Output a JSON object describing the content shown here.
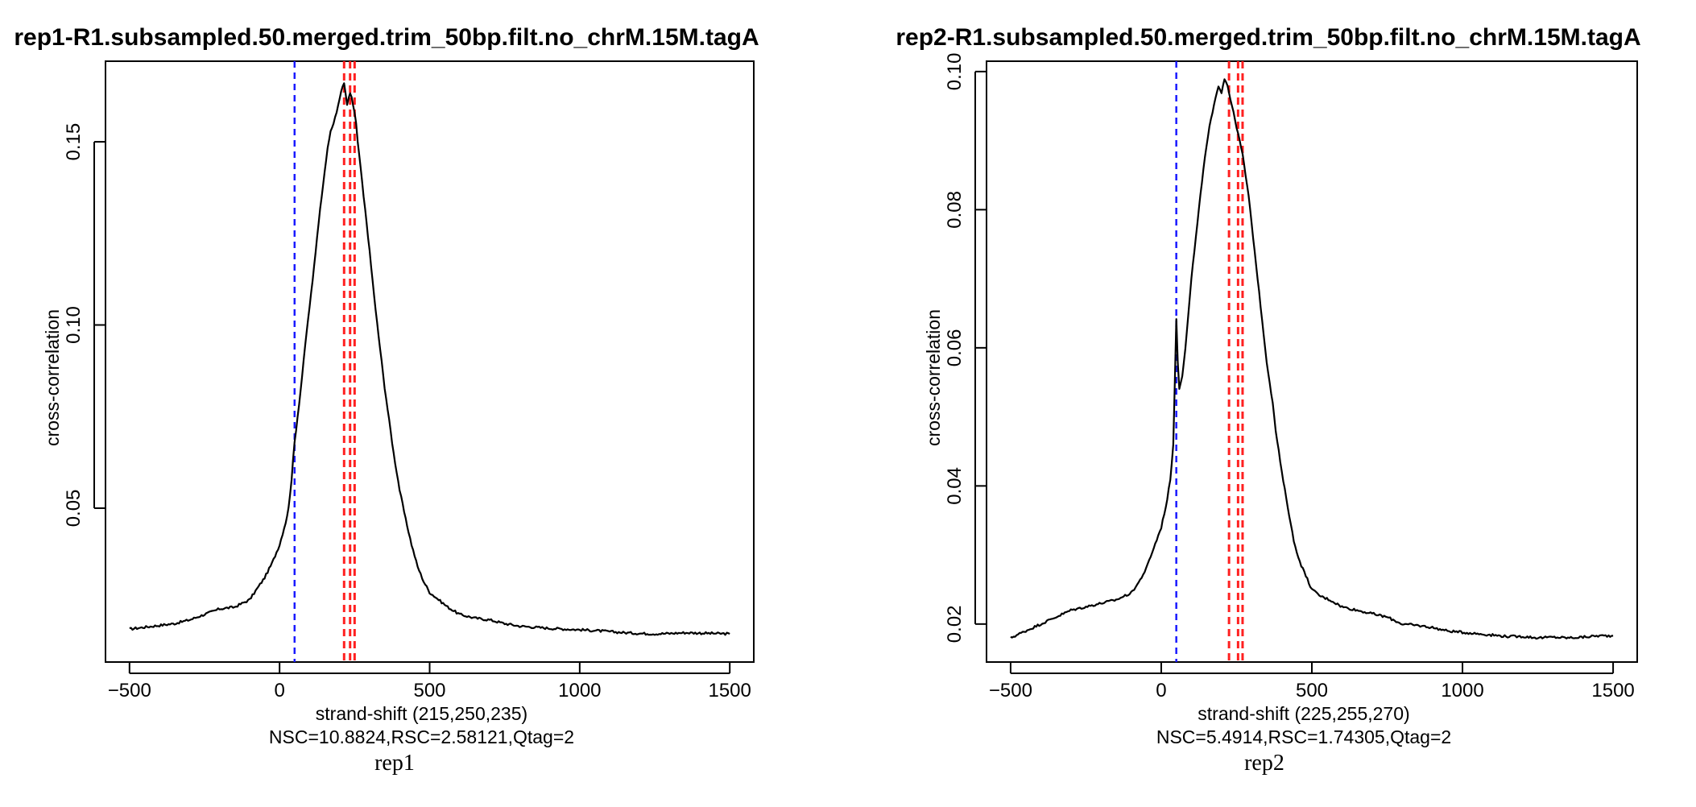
{
  "chart_data": [
    {
      "type": "line",
      "id": "rep1",
      "title": "rep1-R1.subsampled.50.merged.trim_50bp.filt.no_chrM.15M.tagA",
      "xlabel": "strand-shift (215,250,235)",
      "sublabel": "NSC=10.8824,RSC=2.58121,Qtag=2",
      "ylabel": "cross-correlation",
      "xlim": [
        -580,
        1580
      ],
      "ylim": [
        0.008,
        0.172
      ],
      "xticks": [
        -500,
        0,
        500,
        1000,
        1500
      ],
      "yticks": [
        0.05,
        0.1,
        0.15
      ],
      "ytick_labels": [
        "0.05",
        "0.10",
        "0.15"
      ],
      "vlines_blue": [
        50
      ],
      "vlines_red": [
        215,
        235,
        250
      ],
      "series": [
        {
          "name": "cross-correlation",
          "x": [
            -500,
            -450,
            -400,
            -350,
            -300,
            -250,
            -200,
            -150,
            -100,
            -75,
            -50,
            -25,
            0,
            10,
            20,
            30,
            40,
            50,
            60,
            70,
            80,
            90,
            100,
            110,
            120,
            130,
            140,
            150,
            160,
            170,
            180,
            190,
            200,
            210,
            215,
            220,
            225,
            230,
            235,
            240,
            245,
            250,
            255,
            260,
            270,
            280,
            290,
            300,
            310,
            320,
            330,
            340,
            350,
            360,
            370,
            380,
            390,
            400,
            420,
            440,
            460,
            480,
            500,
            530,
            560,
            600,
            650,
            700,
            750,
            800,
            850,
            900,
            950,
            1000,
            1050,
            1100,
            1150,
            1200,
            1250,
            1300,
            1350,
            1400,
            1450,
            1500
          ],
          "y": [
            0.017,
            0.0175,
            0.018,
            0.0185,
            0.0195,
            0.021,
            0.0225,
            0.023,
            0.025,
            0.028,
            0.031,
            0.035,
            0.04,
            0.043,
            0.046,
            0.05,
            0.058,
            0.068,
            0.075,
            0.082,
            0.09,
            0.098,
            0.105,
            0.112,
            0.12,
            0.128,
            0.135,
            0.142,
            0.148,
            0.153,
            0.155,
            0.158,
            0.162,
            0.165,
            0.166,
            0.163,
            0.16,
            0.162,
            0.163,
            0.162,
            0.16,
            0.158,
            0.155,
            0.15,
            0.143,
            0.135,
            0.128,
            0.12,
            0.112,
            0.104,
            0.097,
            0.09,
            0.083,
            0.077,
            0.071,
            0.065,
            0.06,
            0.055,
            0.047,
            0.04,
            0.034,
            0.03,
            0.027,
            0.025,
            0.023,
            0.021,
            0.02,
            0.0195,
            0.0185,
            0.0178,
            0.0175,
            0.0172,
            0.017,
            0.0168,
            0.0166,
            0.0163,
            0.016,
            0.0158,
            0.0157,
            0.0158,
            0.016,
            0.0159,
            0.0158,
            0.0157
          ]
        }
      ]
    },
    {
      "type": "line",
      "id": "rep2",
      "title": "rep2-R1.subsampled.50.merged.trim_50bp.filt.no_chrM.15M.tagA",
      "xlabel": "strand-shift (225,255,270)",
      "sublabel": "NSC=5.4914,RSC=1.74305,Qtag=2",
      "ylabel": "cross-correlation",
      "xlim": [
        -580,
        1580
      ],
      "ylim": [
        0.0145,
        0.1015
      ],
      "xticks": [
        -500,
        0,
        500,
        1000,
        1500
      ],
      "yticks": [
        0.02,
        0.04,
        0.06,
        0.08,
        0.1
      ],
      "ytick_labels": [
        "0.02",
        "0.04",
        "0.06",
        "0.08",
        "0.10"
      ],
      "vlines_blue": [
        50
      ],
      "vlines_red": [
        225,
        255,
        270
      ],
      "series": [
        {
          "name": "cross-correlation",
          "x": [
            -500,
            -450,
            -400,
            -350,
            -300,
            -250,
            -200,
            -150,
            -100,
            -75,
            -50,
            -25,
            0,
            10,
            20,
            30,
            40,
            45,
            50,
            55,
            60,
            70,
            80,
            90,
            100,
            110,
            120,
            130,
            140,
            150,
            160,
            170,
            180,
            190,
            200,
            210,
            220,
            230,
            240,
            250,
            260,
            270,
            280,
            290,
            300,
            310,
            320,
            330,
            340,
            350,
            360,
            370,
            380,
            390,
            400,
            420,
            440,
            460,
            480,
            500,
            530,
            560,
            600,
            650,
            700,
            750,
            800,
            850,
            900,
            950,
            1000,
            1050,
            1100,
            1150,
            1200,
            1250,
            1300,
            1350,
            1400,
            1450,
            1500
          ],
          "y": [
            0.018,
            0.019,
            0.02,
            0.021,
            0.022,
            0.0225,
            0.023,
            0.0235,
            0.0245,
            0.026,
            0.028,
            0.031,
            0.034,
            0.036,
            0.038,
            0.041,
            0.046,
            0.055,
            0.064,
            0.058,
            0.054,
            0.056,
            0.06,
            0.065,
            0.07,
            0.074,
            0.078,
            0.082,
            0.086,
            0.089,
            0.092,
            0.094,
            0.096,
            0.098,
            0.097,
            0.099,
            0.098,
            0.096,
            0.094,
            0.092,
            0.09,
            0.088,
            0.085,
            0.082,
            0.078,
            0.074,
            0.07,
            0.066,
            0.062,
            0.058,
            0.055,
            0.052,
            0.048,
            0.045,
            0.042,
            0.037,
            0.032,
            0.029,
            0.027,
            0.025,
            0.024,
            0.0235,
            0.0225,
            0.022,
            0.0215,
            0.021,
            0.02,
            0.0198,
            0.0195,
            0.019,
            0.0188,
            0.0186,
            0.0184,
            0.0182,
            0.0182,
            0.018,
            0.0181,
            0.018,
            0.0181,
            0.0183,
            0.0183
          ]
        }
      ]
    }
  ],
  "captions": {
    "rep1": "rep1",
    "rep2": "rep2"
  }
}
